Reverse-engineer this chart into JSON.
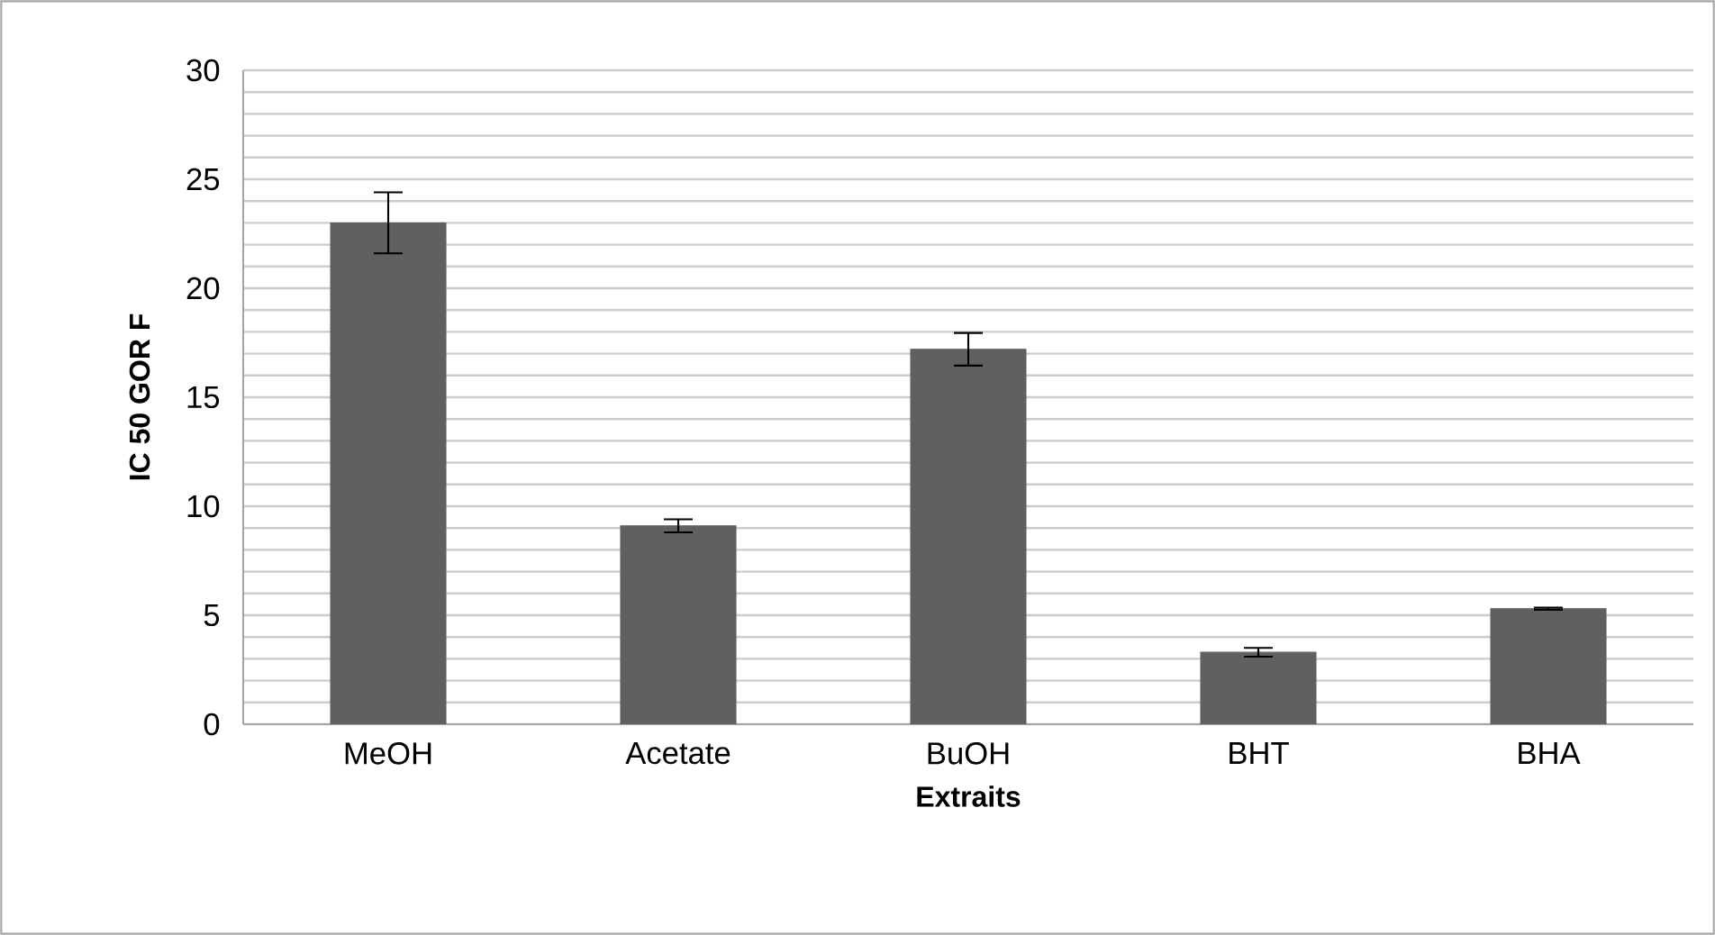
{
  "chart_data": {
    "type": "bar",
    "xlabel": "Extraits",
    "ylabel": "IC 50 GOR F",
    "categories": [
      "MeOH",
      "Acetate",
      "BuOH",
      "BHT",
      "BHA"
    ],
    "values": [
      23,
      9.1,
      17.2,
      3.3,
      5.3
    ],
    "errors": [
      1.4,
      0.3,
      0.75,
      0.2,
      0.05
    ],
    "color": "#606060",
    "ylim": [
      0,
      30
    ],
    "yticks": [
      0,
      5,
      10,
      15,
      20,
      25,
      30
    ],
    "grid": true
  }
}
